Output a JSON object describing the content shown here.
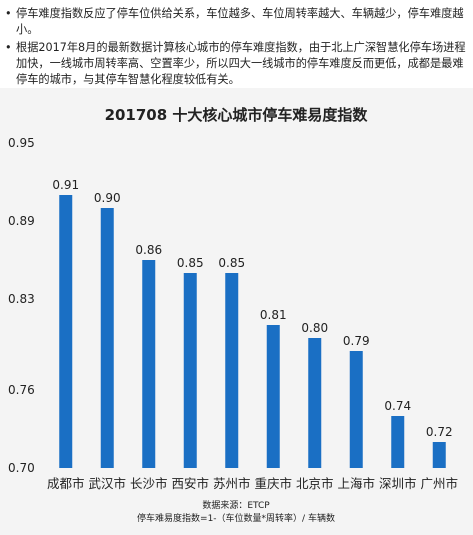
{
  "notes": [
    "停车难度指数反应了停车位供给关系，车位越多、车位周转率越大、车辆越少，停车难度越小。",
    "根据2017年8月的最新数据计算核心城市的停车难度指数，由于北上广深智慧化停车场进程加快，一线城市周转率高、空置率少，所以四大一线城市的停车难度反而更低，成都是最难停车的城市，与其停车智慧化程度较低有关。"
  ],
  "chart_data": {
    "type": "bar",
    "title": "201708 十大核心城市停车难易度指数",
    "categories": [
      "成都市",
      "武汉市",
      "长沙市",
      "西安市",
      "苏州市",
      "重庆市",
      "北京市",
      "上海市",
      "深圳市",
      "广州市"
    ],
    "values": [
      0.91,
      0.9,
      0.86,
      0.85,
      0.85,
      0.81,
      0.8,
      0.79,
      0.74,
      0.72
    ],
    "value_labels": [
      "0.91",
      "0.90",
      "0.86",
      "0.85",
      "0.85",
      "0.81",
      "0.80",
      "0.79",
      "0.74",
      "0.72"
    ],
    "yticks": [
      0.7,
      0.76,
      0.83,
      0.89,
      0.95
    ],
    "ytick_labels": [
      "0.70",
      "0.76",
      "0.83",
      "0.89",
      "0.95"
    ],
    "ylim": [
      0.7,
      0.95
    ],
    "grid": false,
    "bar_color": "#1a6fc4",
    "source_line1": "数据来源：ETCP",
    "source_line2": "停车难易度指数=1-（车位数量*周转率）/ 车辆数"
  }
}
